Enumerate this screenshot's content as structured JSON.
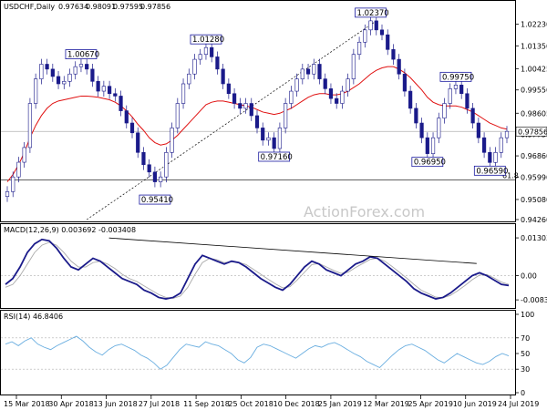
{
  "chart_data": [
    {
      "type": "candlestick",
      "title": "USDCHF,Daily",
      "ohlc_readout": [
        "0.97634",
        "0.98091",
        "0.97595",
        "0.97856"
      ],
      "last_price": 0.97856,
      "last_price_label": "0.97856",
      "y_ticks": [
        0.9426,
        0.9508,
        0.9599,
        0.9686,
        0.9773,
        0.986,
        0.9955,
        1.0042,
        1.0135,
        1.0223
      ],
      "y_tick_labels": [
        "0.94260",
        "0.95080",
        "0.95990",
        "0.96860",
        "0.97730",
        "0.98605",
        "0.99550",
        "1.00425",
        "1.01350",
        "1.02230"
      ],
      "ylim": [
        0.9426,
        1.027
      ],
      "fib_level": 0.9587,
      "fib_label": "61.8",
      "horizontal_level": 0.97856,
      "price_series": [
        0.954,
        0.96,
        0.966,
        0.972,
        0.99,
        1.0,
        1.006,
        1.004,
        1.001,
        0.998,
        0.999,
        1.002,
        1.005,
        1.006,
        1.004,
        0.999,
        0.995,
        0.997,
        0.994,
        0.993,
        0.987,
        0.982,
        0.978,
        0.97,
        0.965,
        0.962,
        0.958,
        0.96,
        0.97,
        0.98,
        0.99,
        0.998,
        1.002,
        1.008,
        1.01,
        1.0128,
        1.009,
        1.004,
        0.998,
        0.994,
        0.99,
        0.988,
        0.99,
        0.985,
        0.98,
        0.975,
        0.976,
        0.9716,
        0.98,
        0.99,
        0.995,
        1.0,
        1.004,
        1.002,
        1.006,
        1.0,
        0.996,
        0.992,
        0.99,
        0.995,
        1.0,
        1.01,
        1.015,
        1.02,
        1.0237,
        1.02,
        1.018,
        1.012,
        1.008,
        1.002,
        0.995,
        0.988,
        0.982,
        0.976,
        0.9695,
        0.976,
        0.984,
        0.99,
        0.996,
        0.9975,
        0.994,
        0.988,
        0.982,
        0.976,
        0.97,
        0.9659,
        0.97,
        0.976,
        0.9786
      ],
      "ma_series": [
        0.958,
        0.961,
        0.965,
        0.97,
        0.976,
        0.981,
        0.985,
        0.988,
        0.99,
        0.991,
        0.9915,
        0.992,
        0.9925,
        0.993,
        0.993,
        0.9928,
        0.9925,
        0.992,
        0.9915,
        0.9905,
        0.989,
        0.987,
        0.9845,
        0.9815,
        0.979,
        0.976,
        0.974,
        0.973,
        0.9735,
        0.975,
        0.977,
        0.9795,
        0.982,
        0.9845,
        0.987,
        0.9895,
        0.9905,
        0.991,
        0.991,
        0.9905,
        0.99,
        0.9895,
        0.989,
        0.9885,
        0.9875,
        0.9865,
        0.986,
        0.9855,
        0.986,
        0.987,
        0.988,
        0.9895,
        0.991,
        0.9925,
        0.9935,
        0.994,
        0.994,
        0.9935,
        0.9935,
        0.994,
        0.995,
        0.9965,
        0.998,
        1.0,
        1.002,
        1.0035,
        1.0045,
        1.005,
        1.005,
        1.004,
        1.0025,
        1.0005,
        0.998,
        0.9955,
        0.9925,
        0.9905,
        0.9895,
        0.989,
        0.989,
        0.989,
        0.9885,
        0.9875,
        0.9865,
        0.985,
        0.9835,
        0.982,
        0.981,
        0.98,
        0.9795
      ],
      "annotations": [
        {
          "text": "1.00670",
          "i": 13,
          "value": 1.0067,
          "pos": "above"
        },
        {
          "text": "1.01280",
          "i": 35,
          "value": 1.0128,
          "pos": "above"
        },
        {
          "text": "0.95410",
          "i": 26,
          "value": 0.9541,
          "pos": "below"
        },
        {
          "text": "0.97160",
          "i": 47,
          "value": 0.9716,
          "pos": "below"
        },
        {
          "text": "1.02370",
          "i": 64,
          "value": 1.0237,
          "pos": "above"
        },
        {
          "text": "0.96950",
          "i": 74,
          "value": 0.9695,
          "pos": "below"
        },
        {
          "text": "0.99750",
          "i": 79,
          "value": 0.9975,
          "pos": "above"
        },
        {
          "text": "0.96590",
          "i": 85,
          "value": 0.9659,
          "pos": "below"
        }
      ],
      "trendline": {
        "from": {
          "i": 14,
          "value": 0.9426
        },
        "to": {
          "i": 65,
          "value": 1.0237
        }
      },
      "watermark": "ActionForex.com"
    },
    {
      "type": "line",
      "title": "MACD(12,26,9) 0.003692 -0.003408",
      "y_ticks": [
        0.013034,
        0.0,
        -0.00834
      ],
      "y_tick_labels": [
        "0.013034",
        "0.00",
        "-0.00834"
      ],
      "ylim": [
        -0.0105,
        0.014
      ],
      "series": [
        {
          "name": "MACD",
          "values": [
            -0.003,
            -0.001,
            0.003,
            0.008,
            0.011,
            0.0125,
            0.012,
            0.0095,
            0.006,
            0.003,
            0.002,
            0.004,
            0.006,
            0.005,
            0.003,
            0.001,
            -0.001,
            -0.002,
            -0.003,
            -0.005,
            -0.006,
            -0.0075,
            -0.008,
            -0.0075,
            -0.006,
            -0.001,
            0.004,
            0.007,
            0.006,
            0.005,
            0.004,
            0.005,
            0.0045,
            0.003,
            0.001,
            -0.001,
            -0.0025,
            -0.004,
            -0.005,
            -0.003,
            0.0,
            0.003,
            0.005,
            0.004,
            0.002,
            0.001,
            0.0,
            0.002,
            0.004,
            0.005,
            0.0065,
            0.006,
            0.004,
            0.002,
            0.0,
            -0.002,
            -0.0045,
            -0.006,
            -0.007,
            -0.008,
            -0.0075,
            -0.006,
            -0.004,
            -0.002,
            0.0,
            0.001,
            0.0,
            -0.0015,
            -0.003,
            -0.0034
          ]
        },
        {
          "name": "Signal",
          "values": [
            -0.004,
            -0.003,
            0.0,
            0.004,
            0.008,
            0.0105,
            0.0115,
            0.0105,
            0.008,
            0.005,
            0.003,
            0.003,
            0.0045,
            0.005,
            0.004,
            0.0025,
            0.0005,
            -0.001,
            -0.002,
            -0.0035,
            -0.005,
            -0.0065,
            -0.0075,
            -0.0078,
            -0.007,
            -0.004,
            0.0005,
            0.0045,
            0.006,
            0.0055,
            0.0045,
            0.0048,
            0.0046,
            0.0038,
            0.0022,
            0.0005,
            -0.0012,
            -0.0028,
            -0.0042,
            -0.0038,
            -0.0015,
            0.0012,
            0.0038,
            0.0042,
            0.003,
            0.0018,
            0.0008,
            0.0012,
            0.0028,
            0.0042,
            0.0056,
            0.006,
            0.005,
            0.0032,
            0.0012,
            -0.0008,
            -0.003,
            -0.005,
            -0.0062,
            -0.0074,
            -0.0076,
            -0.0068,
            -0.0052,
            -0.0034,
            -0.0014,
            0.0002,
            0.0004,
            -0.0008,
            -0.0022,
            -0.003
          ]
        }
      ],
      "trendline": {
        "from": {
          "i": 0.21,
          "value": 0.013
        },
        "to": {
          "i": 0.93,
          "value": 0.0042
        }
      }
    },
    {
      "type": "line",
      "title": "RSI(14) 46.8406",
      "y_ticks": [
        100,
        70,
        50,
        30,
        0
      ],
      "y_tick_labels": [
        "100",
        "70",
        "50",
        "30",
        "0"
      ],
      "ylim": [
        0,
        100
      ],
      "series": [
        {
          "name": "RSI",
          "values": [
            62,
            65,
            60,
            66,
            70,
            62,
            58,
            55,
            60,
            64,
            68,
            72,
            66,
            58,
            52,
            48,
            55,
            60,
            62,
            58,
            54,
            48,
            44,
            38,
            30,
            35,
            45,
            55,
            62,
            60,
            58,
            65,
            62,
            60,
            55,
            50,
            42,
            38,
            45,
            58,
            62,
            60,
            56,
            52,
            48,
            44,
            50,
            56,
            60,
            58,
            62,
            64,
            60,
            55,
            50,
            46,
            40,
            36,
            32,
            40,
            48,
            55,
            60,
            62,
            58,
            54,
            48,
            42,
            38,
            44,
            50,
            46,
            42,
            38,
            36,
            40,
            46,
            50,
            47
          ]
        }
      ]
    }
  ],
  "x_tick_labels": [
    "15 Mar 2018",
    "30 Apr 2018",
    "13 Jun 2018",
    "27 Jul 2018",
    "11 Sep 2018",
    "25 Oct 2018",
    "10 Dec 2018",
    "25 Jan 2019",
    "12 Mar 2019",
    "25 Apr 2019",
    "10 Jun 2019",
    "24 Jul 2019"
  ]
}
